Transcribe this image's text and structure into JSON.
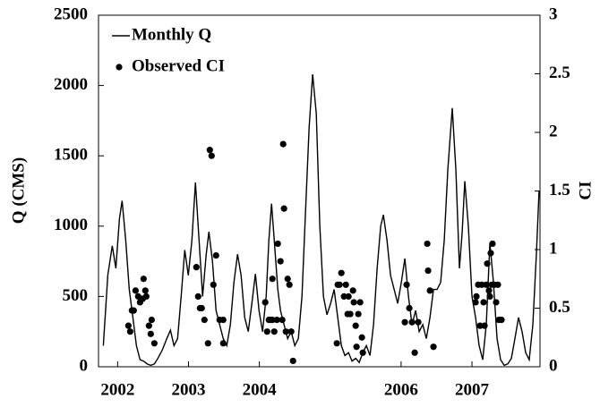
{
  "chart_data": {
    "type": "line",
    "ylabel": "Q (CMS)",
    "y2label": "CI",
    "legend": "upper left",
    "xlim": [
      2001.73,
      2007.96
    ],
    "xticks": [
      2002,
      2003,
      2004,
      2006,
      2007
    ],
    "ylim": [
      0,
      2500
    ],
    "yticks": [
      0,
      500,
      1000,
      1500,
      2000,
      2500
    ],
    "y2lim": [
      0,
      3
    ],
    "y2ticks": [
      0,
      0.5,
      1,
      1.5,
      2,
      2.5,
      3
    ],
    "series": [
      {
        "name": "Monthly Q",
        "type": "line",
        "color": "#000000",
        "x": [
          2001.798,
          2001.861,
          2001.924,
          2001.975,
          2002.025,
          2002.063,
          2002.114,
          2002.164,
          2002.215,
          2002.265,
          2002.316,
          2002.366,
          2002.417,
          2002.467,
          2002.518,
          2002.568,
          2002.631,
          2002.694,
          2002.745,
          2002.795,
          2002.846,
          2002.896,
          2002.947,
          2002.997,
          2003.048,
          2003.098,
          2003.149,
          2003.199,
          2003.25,
          2003.288,
          2003.338,
          2003.389,
          2003.439,
          2003.49,
          2003.54,
          2003.591,
          2003.641,
          2003.692,
          2003.742,
          2003.793,
          2003.843,
          2003.894,
          2003.944,
          2003.995,
          2004.045,
          2004.096,
          2004.134,
          2004.172,
          2004.21,
          2004.26,
          2004.298,
          2004.348,
          2004.399,
          2004.449,
          2004.5,
          2004.55,
          2004.601,
          2004.651,
          2004.702,
          2004.752,
          2004.803,
          2004.853,
          2004.904,
          2004.954,
          2005.005,
          2005.055,
          2005.106,
          2005.157,
          2005.207,
          2005.258,
          2005.308,
          2005.359,
          2005.409,
          2005.46,
          2005.51,
          2005.561,
          2005.611,
          2005.662,
          2005.712,
          2005.75,
          2005.801,
          2005.851,
          2005.902,
          2005.952,
          2006.003,
          2006.053,
          2006.104,
          2006.154,
          2006.205,
          2006.255,
          2006.306,
          2006.356,
          2006.407,
          2006.457,
          2006.508,
          2006.558,
          2006.609,
          2006.659,
          2006.722,
          2006.773,
          2006.823,
          2006.861,
          2006.899,
          2006.949,
          2007,
          2007.051,
          2007.101,
          2007.152,
          2007.202,
          2007.253,
          2007.303,
          2007.354,
          2007.404,
          2007.455,
          2007.505,
          2007.556,
          2007.606,
          2007.657,
          2007.707,
          2007.758,
          2007.808,
          2007.859,
          2007.909,
          2007.947
        ],
        "values": [
          150,
          650,
          860,
          700,
          1050,
          1180,
          900,
          550,
          350,
          150,
          50,
          40,
          20,
          10,
          20,
          60,
          120,
          200,
          260,
          150,
          200,
          500,
          830,
          650,
          900,
          1310,
          900,
          500,
          800,
          960,
          750,
          400,
          300,
          200,
          150,
          300,
          600,
          800,
          650,
          350,
          250,
          450,
          660,
          400,
          250,
          500,
          900,
          1160,
          900,
          550,
          400,
          300,
          200,
          250,
          150,
          200,
          500,
          1100,
          1700,
          2080,
          1800,
          1000,
          500,
          370,
          450,
          550,
          350,
          150,
          80,
          100,
          40,
          60,
          30,
          100,
          150,
          80,
          300,
          700,
          1000,
          1080,
          900,
          650,
          550,
          450,
          600,
          770,
          500,
          300,
          400,
          250,
          300,
          200,
          350,
          550,
          550,
          600,
          900,
          1400,
          1840,
          1400,
          700,
          950,
          1320,
          1000,
          500,
          350,
          150,
          50,
          300,
          880,
          600,
          200,
          50,
          10,
          20,
          60,
          200,
          350,
          250,
          100,
          50,
          300,
          800,
          1250
        ]
      },
      {
        "name": "Observed CI",
        "type": "scatter",
        "axis": "y2",
        "color": "#000000",
        "x": [
          2002.152,
          2002.177,
          2002.202,
          2002.227,
          2002.253,
          2002.29,
          2002.316,
          2002.354,
          2002.366,
          2002.391,
          2002.404,
          2002.442,
          2002.467,
          2002.48,
          2002.518,
          2003.111,
          2003.136,
          2003.162,
          2003.187,
          2003.225,
          2003.275,
          2003.301,
          2003.326,
          2003.351,
          2003.389,
          2003.439,
          2003.49,
          2003.49,
          2004.083,
          2004.109,
          2004.134,
          2004.159,
          2004.184,
          2004.184,
          2004.21,
          2004.247,
          2004.26,
          2004.298,
          2004.323,
          2004.336,
          2004.348,
          2004.374,
          2004.399,
          2004.424,
          2004.449,
          2004.475,
          2005.093,
          2005.106,
          2005.131,
          2005.157,
          2005.194,
          2005.22,
          2005.245,
          2005.258,
          2005.283,
          2005.321,
          2005.333,
          2005.359,
          2005.371,
          2005.396,
          2005.422,
          2005.447,
          2005.46,
          2006.053,
          2006.078,
          2006.116,
          2006.154,
          2006.192,
          2006.242,
          2006.369,
          2006.381,
          2006.407,
          2006.457,
          2007.051,
          2007.063,
          2007.088,
          2007.114,
          2007.139,
          2007.164,
          2007.177,
          2007.202,
          2007.215,
          2007.24,
          2007.253,
          2007.265,
          2007.278,
          2007.29,
          2007.316,
          2007.341,
          2007.366,
          2007.379,
          2007.417
        ],
        "values": [
          0.35,
          0.3,
          0.48,
          0.48,
          0.65,
          0.6,
          0.55,
          0.58,
          0.75,
          0.65,
          0.6,
          0.35,
          0.28,
          0.4,
          0.2,
          0.85,
          0.6,
          0.5,
          0.5,
          0.4,
          0.2,
          1.85,
          1.8,
          0.7,
          0.95,
          0.4,
          0.4,
          0.2,
          0.55,
          0.3,
          0.4,
          0.4,
          0.4,
          0.75,
          0.3,
          0.4,
          1.05,
          0.9,
          0.4,
          1.9,
          1.35,
          0.3,
          0.75,
          0.7,
          0.3,
          0.05,
          0.2,
          0.7,
          0.7,
          0.8,
          0.6,
          0.7,
          0.45,
          0.6,
          0.45,
          0.65,
          0.55,
          0.35,
          0.17,
          0.45,
          0.55,
          0.25,
          0.12,
          0.38,
          0.7,
          0.5,
          0.38,
          0.12,
          0.38,
          1.05,
          0.82,
          0.65,
          0.17,
          0.55,
          0.6,
          0.7,
          0.35,
          0.7,
          0.55,
          0.35,
          0.7,
          0.88,
          0.65,
          0.6,
          0.97,
          0.7,
          1.05,
          0.7,
          0.55,
          0.7,
          0.4,
          0.4
        ]
      }
    ]
  }
}
